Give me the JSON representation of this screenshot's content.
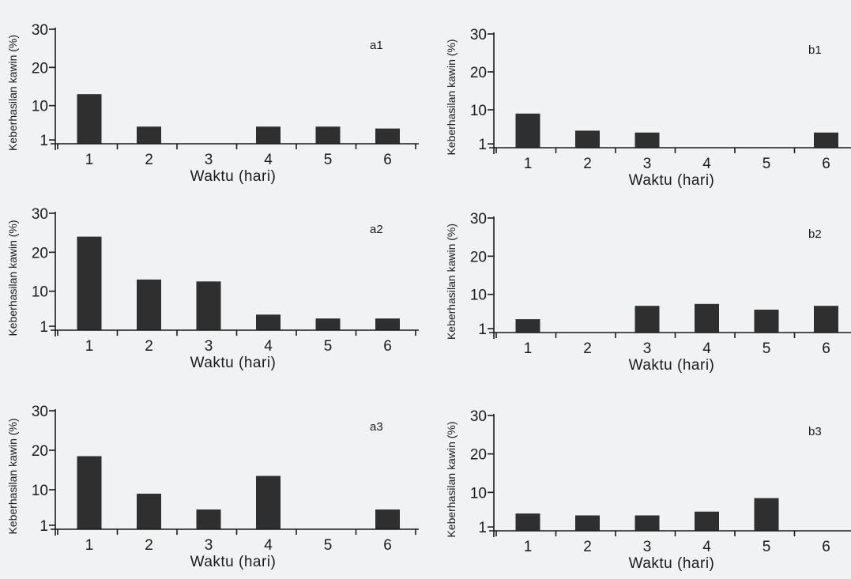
{
  "chart_data": [
    {
      "id": "a1",
      "type": "bar",
      "title": "",
      "panel_label": "a1",
      "xlabel": "Waktu (hari)",
      "ylabel": "Keberhasilan kawin (%)",
      "categories": [
        "1",
        "2",
        "3",
        "4",
        "5",
        "6"
      ],
      "values": [
        13,
        4.5,
        0,
        4.5,
        4.5,
        4
      ],
      "y_ticks": [
        "1",
        "10",
        "20",
        "30"
      ],
      "ylim": [
        0,
        30
      ],
      "grid": false
    },
    {
      "id": "b1",
      "type": "bar",
      "title": "",
      "panel_label": "b1",
      "xlabel": "Waktu (hari)",
      "ylabel": "Keberhasilan kawin (%)",
      "categories": [
        "1",
        "2",
        "3",
        "4",
        "5",
        "6"
      ],
      "values": [
        9,
        4.5,
        4,
        0,
        0,
        4
      ],
      "y_ticks": [
        "1",
        "10",
        "20",
        "30"
      ],
      "ylim": [
        0,
        30
      ],
      "grid": false
    },
    {
      "id": "a2",
      "type": "bar",
      "title": "",
      "panel_label": "a2",
      "xlabel": "Waktu (hari)",
      "ylabel": "Keberhasilan kawin (%)",
      "categories": [
        "1",
        "2",
        "3",
        "4",
        "5",
        "6"
      ],
      "values": [
        24,
        13,
        12.5,
        4,
        3,
        3
      ],
      "y_ticks": [
        "1",
        "10",
        "20",
        "30"
      ],
      "ylim": [
        0,
        30
      ],
      "grid": false
    },
    {
      "id": "b2",
      "type": "bar",
      "title": "",
      "panel_label": "b2",
      "xlabel": "Waktu (hari)",
      "ylabel": "Keberhasilan kawin (%)",
      "categories": [
        "1",
        "2",
        "3",
        "4",
        "5",
        "6"
      ],
      "values": [
        3.5,
        0,
        7,
        7.5,
        6,
        7
      ],
      "y_ticks": [
        "1",
        "10",
        "20",
        "30"
      ],
      "ylim": [
        0,
        30
      ],
      "grid": false
    },
    {
      "id": "a3",
      "type": "bar",
      "title": "",
      "panel_label": "a3",
      "xlabel": "Waktu (hari)",
      "ylabel": "Keberhasilan kawin (%)",
      "categories": [
        "1",
        "2",
        "3",
        "4",
        "5",
        "6"
      ],
      "values": [
        18.5,
        9,
        5,
        13.5,
        0,
        5
      ],
      "y_ticks": [
        "1",
        "10",
        "20",
        "30"
      ],
      "ylim": [
        0,
        30
      ],
      "grid": false
    },
    {
      "id": "b3",
      "type": "bar",
      "title": "",
      "panel_label": "b3",
      "xlabel": "Waktu (hari)",
      "ylabel": "Keberhasilan kawin (%)",
      "categories": [
        "1",
        "2",
        "3",
        "4",
        "5",
        "6"
      ],
      "values": [
        4.5,
        4,
        4,
        5,
        8.5,
        0
      ],
      "y_ticks": [
        "1",
        "10",
        "20",
        "30"
      ],
      "ylim": [
        0,
        30
      ],
      "grid": false
    }
  ],
  "colors": {
    "bar": "#2f2f2f",
    "axis": "#1a1a1a",
    "background": "#f1f2f4"
  }
}
